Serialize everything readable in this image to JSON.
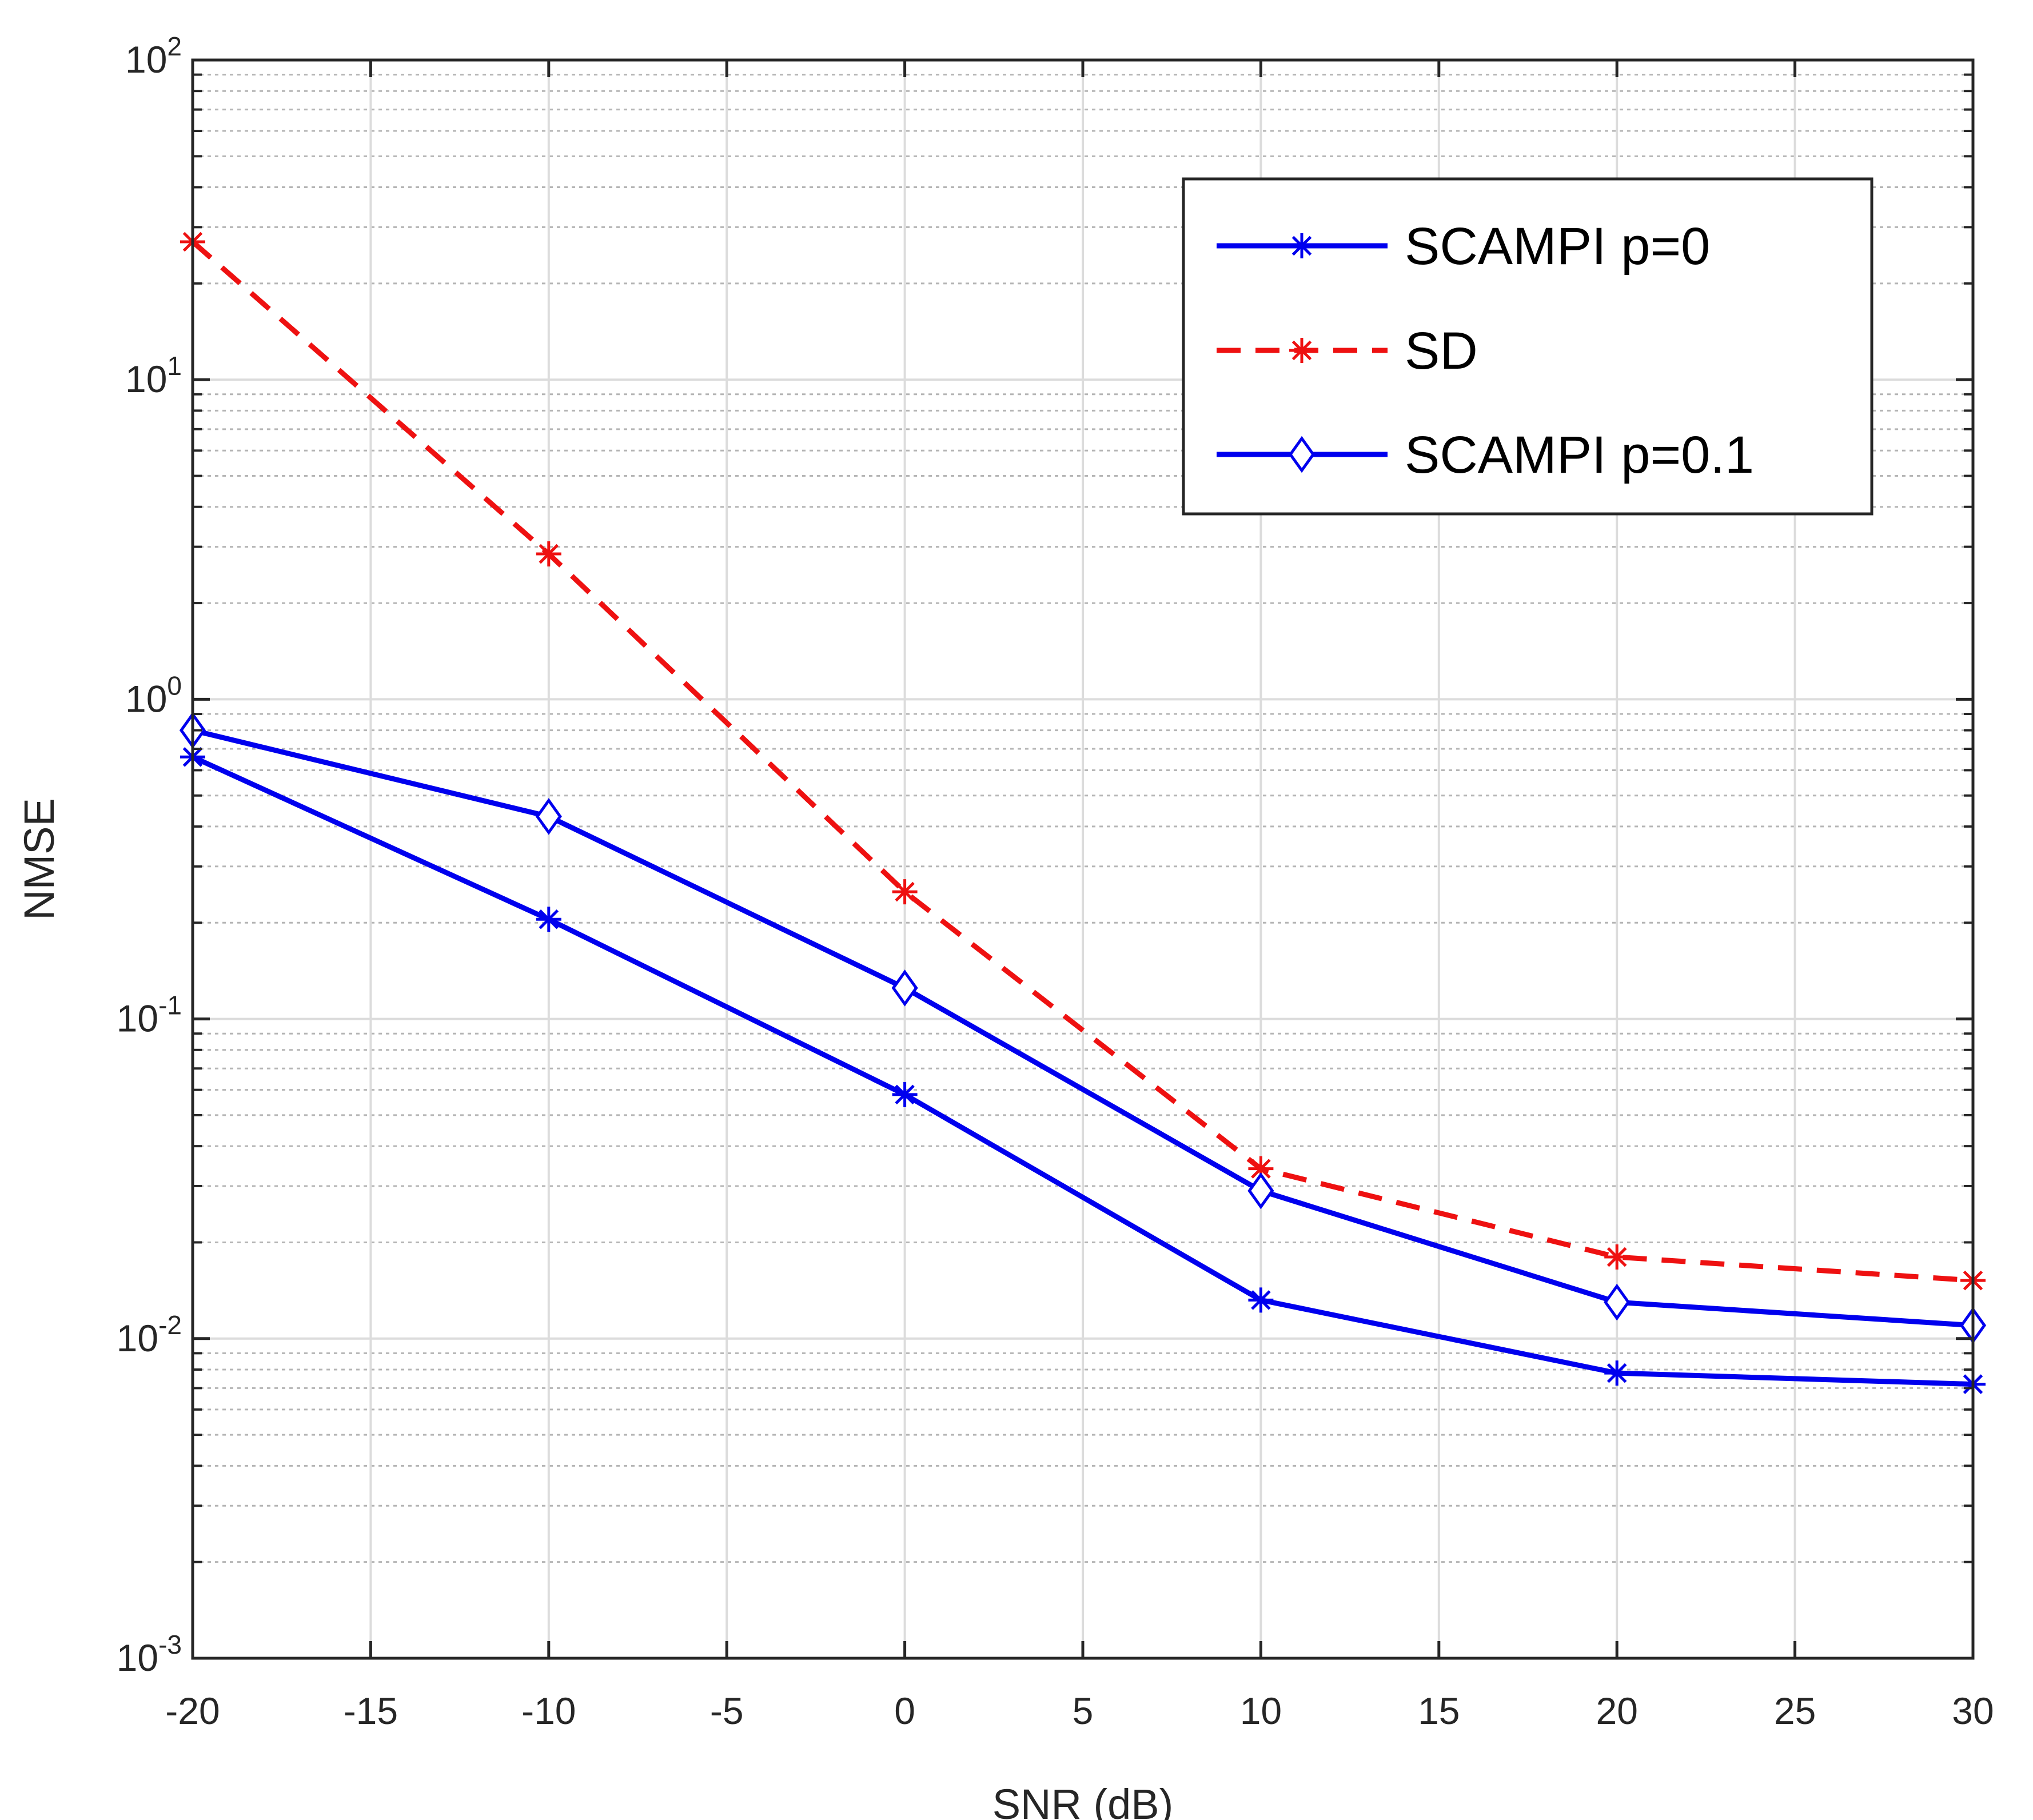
{
  "chart_data": {
    "type": "line",
    "title": "",
    "xlabel": "SNR (dB)",
    "ylabel": "NMSE",
    "xlim": [
      -20,
      30
    ],
    "ylim": [
      0.001,
      100
    ],
    "yscale": "log",
    "grid": true,
    "legend_position": "top-right",
    "x_ticks": [
      "-20",
      "-15",
      "-10",
      "-5",
      "0",
      "5",
      "10",
      "15",
      "20",
      "25",
      "30"
    ],
    "y_ticks": [
      {
        "base": "10",
        "exp": "-3"
      },
      {
        "base": "10",
        "exp": "-2"
      },
      {
        "base": "10",
        "exp": "-1"
      },
      {
        "base": "10",
        "exp": "0"
      },
      {
        "base": "10",
        "exp": "1"
      },
      {
        "base": "10",
        "exp": "2"
      }
    ],
    "x": [
      -20,
      -10,
      0,
      10,
      20,
      30
    ],
    "series": [
      {
        "name": "SCAMPI p=0",
        "color": "#0000ee",
        "dash": "solid",
        "marker": "asterisk",
        "values": [
          0.66,
          0.205,
          0.058,
          0.0132,
          0.0078,
          0.0072
        ]
      },
      {
        "name": "SD",
        "color": "#ee1111",
        "dash": "dashed",
        "marker": "asterisk",
        "values": [
          27,
          2.85,
          0.25,
          0.034,
          0.018,
          0.0152
        ]
      },
      {
        "name": "SCAMPI p=0.1",
        "color": "#0000ee",
        "dash": "solid",
        "marker": "diamond",
        "values": [
          0.8,
          0.43,
          0.125,
          0.029,
          0.013,
          0.011
        ]
      }
    ]
  }
}
